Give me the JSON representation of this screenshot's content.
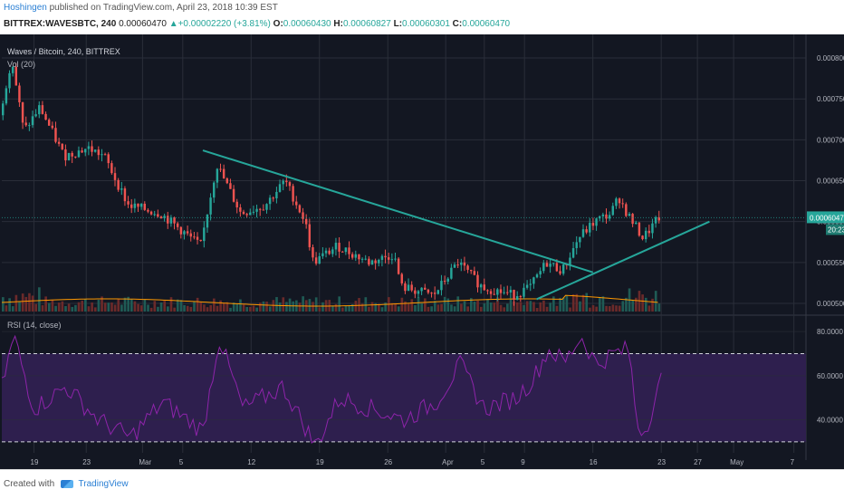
{
  "header": {
    "author": "Hoshingen",
    "published": "published on TradingView.com, April 23, 2018 10:39 EST",
    "symbol": "BITTREX:WAVESBTC, 240",
    "last": "0.00060470",
    "change": "▲+0.00002220 (+3.81%)",
    "o_label": "O:",
    "o_value": "0.00060430",
    "h_label": "H:",
    "h_value": "0.00060827",
    "l_label": "L:",
    "l_value": "0.00060301",
    "c_label": "C:",
    "c_value": "0.00060470"
  },
  "pane": {
    "title": "Waves / Bitcoin, 240, BITTREX",
    "volume_label": "Vol (20)",
    "rsi_label": "RSI (14, close)",
    "price_marker": "0.00060470",
    "countdown": "20:23"
  },
  "footer": {
    "created": "Created with",
    "brand": "TradingView"
  },
  "colors": {
    "background": "#131722",
    "grid": "#2a2e39",
    "up": "#26a69a",
    "down": "#ef5350",
    "trendline": "#26a69a",
    "rsi_band": "#2e1f4e",
    "rsi_line": "#8e24aa",
    "ma": "#ff9800"
  },
  "chart_data": [
    {
      "type": "candlestick",
      "title": "Waves / Bitcoin, 240, BITTREX",
      "y_ticks": [
        "0.00080000",
        "0.00075000",
        "0.00070000",
        "0.00065000",
        "0.00060000",
        "0.00055000",
        "0.00050000"
      ],
      "ylim": [
        0.00049,
        0.00082
      ],
      "x_ticks": [
        "19",
        "23",
        "Mar",
        "5",
        "12",
        "19",
        "26",
        "Apr",
        "5",
        "9",
        "16",
        "23",
        "27",
        "May",
        "7"
      ],
      "x_tick_positions": [
        0.04,
        0.105,
        0.175,
        0.225,
        0.31,
        0.395,
        0.48,
        0.552,
        0.6,
        0.65,
        0.735,
        0.82,
        0.865,
        0.91,
        0.985
      ],
      "trendlines": [
        {
          "name": "downtrend",
          "from": [
            0.25,
            0.000687
          ],
          "to": [
            0.735,
            0.000538
          ]
        },
        {
          "name": "uptrend",
          "from": [
            0.665,
            0.000505
          ],
          "to": [
            0.88,
            0.0006
          ]
        }
      ],
      "current_price": 0.0006047,
      "keypoints": [
        {
          "x": 0.0,
          "y": 0.00073
        },
        {
          "x": 0.015,
          "y": 0.0008
        },
        {
          "x": 0.03,
          "y": 0.00071
        },
        {
          "x": 0.05,
          "y": 0.00074
        },
        {
          "x": 0.08,
          "y": 0.00068
        },
        {
          "x": 0.11,
          "y": 0.00069
        },
        {
          "x": 0.13,
          "y": 0.00068
        },
        {
          "x": 0.16,
          "y": 0.00062
        },
        {
          "x": 0.2,
          "y": 0.00061
        },
        {
          "x": 0.25,
          "y": 0.00057
        },
        {
          "x": 0.27,
          "y": 0.00067
        },
        {
          "x": 0.3,
          "y": 0.00061
        },
        {
          "x": 0.33,
          "y": 0.00062
        },
        {
          "x": 0.355,
          "y": 0.00065
        },
        {
          "x": 0.38,
          "y": 0.0006
        },
        {
          "x": 0.39,
          "y": 0.00055
        },
        {
          "x": 0.42,
          "y": 0.00057
        },
        {
          "x": 0.46,
          "y": 0.00055
        },
        {
          "x": 0.49,
          "y": 0.00056
        },
        {
          "x": 0.5,
          "y": 0.00052
        },
        {
          "x": 0.54,
          "y": 0.00051
        },
        {
          "x": 0.57,
          "y": 0.00055
        },
        {
          "x": 0.6,
          "y": 0.00052
        },
        {
          "x": 0.64,
          "y": 0.00051
        },
        {
          "x": 0.66,
          "y": 0.00052
        },
        {
          "x": 0.68,
          "y": 0.00055
        },
        {
          "x": 0.7,
          "y": 0.00054
        },
        {
          "x": 0.72,
          "y": 0.00058
        },
        {
          "x": 0.74,
          "y": 0.0006
        },
        {
          "x": 0.76,
          "y": 0.00061
        },
        {
          "x": 0.77,
          "y": 0.00063
        },
        {
          "x": 0.78,
          "y": 0.00061
        },
        {
          "x": 0.8,
          "y": 0.00058
        },
        {
          "x": 0.82,
          "y": 0.0006047
        }
      ]
    },
    {
      "type": "line",
      "title": "RSI (14, close)",
      "y_ticks": [
        "80.0000",
        "60.0000",
        "40.0000"
      ],
      "ylim": [
        25,
        85
      ],
      "bands": [
        30,
        70
      ],
      "keypoints": [
        {
          "x": 0.0,
          "y": 55
        },
        {
          "x": 0.015,
          "y": 78
        },
        {
          "x": 0.04,
          "y": 45
        },
        {
          "x": 0.08,
          "y": 55
        },
        {
          "x": 0.12,
          "y": 40
        },
        {
          "x": 0.16,
          "y": 32
        },
        {
          "x": 0.2,
          "y": 48
        },
        {
          "x": 0.25,
          "y": 35
        },
        {
          "x": 0.27,
          "y": 77
        },
        {
          "x": 0.3,
          "y": 45
        },
        {
          "x": 0.35,
          "y": 55
        },
        {
          "x": 0.38,
          "y": 35
        },
        {
          "x": 0.39,
          "y": 28
        },
        {
          "x": 0.42,
          "y": 50
        },
        {
          "x": 0.46,
          "y": 45
        },
        {
          "x": 0.5,
          "y": 40
        },
        {
          "x": 0.54,
          "y": 48
        },
        {
          "x": 0.57,
          "y": 65
        },
        {
          "x": 0.6,
          "y": 45
        },
        {
          "x": 0.64,
          "y": 50
        },
        {
          "x": 0.66,
          "y": 58
        },
        {
          "x": 0.68,
          "y": 72
        },
        {
          "x": 0.7,
          "y": 66
        },
        {
          "x": 0.72,
          "y": 78
        },
        {
          "x": 0.74,
          "y": 65
        },
        {
          "x": 0.76,
          "y": 70
        },
        {
          "x": 0.78,
          "y": 72
        },
        {
          "x": 0.79,
          "y": 38
        },
        {
          "x": 0.8,
          "y": 35
        },
        {
          "x": 0.82,
          "y": 58
        }
      ]
    }
  ]
}
